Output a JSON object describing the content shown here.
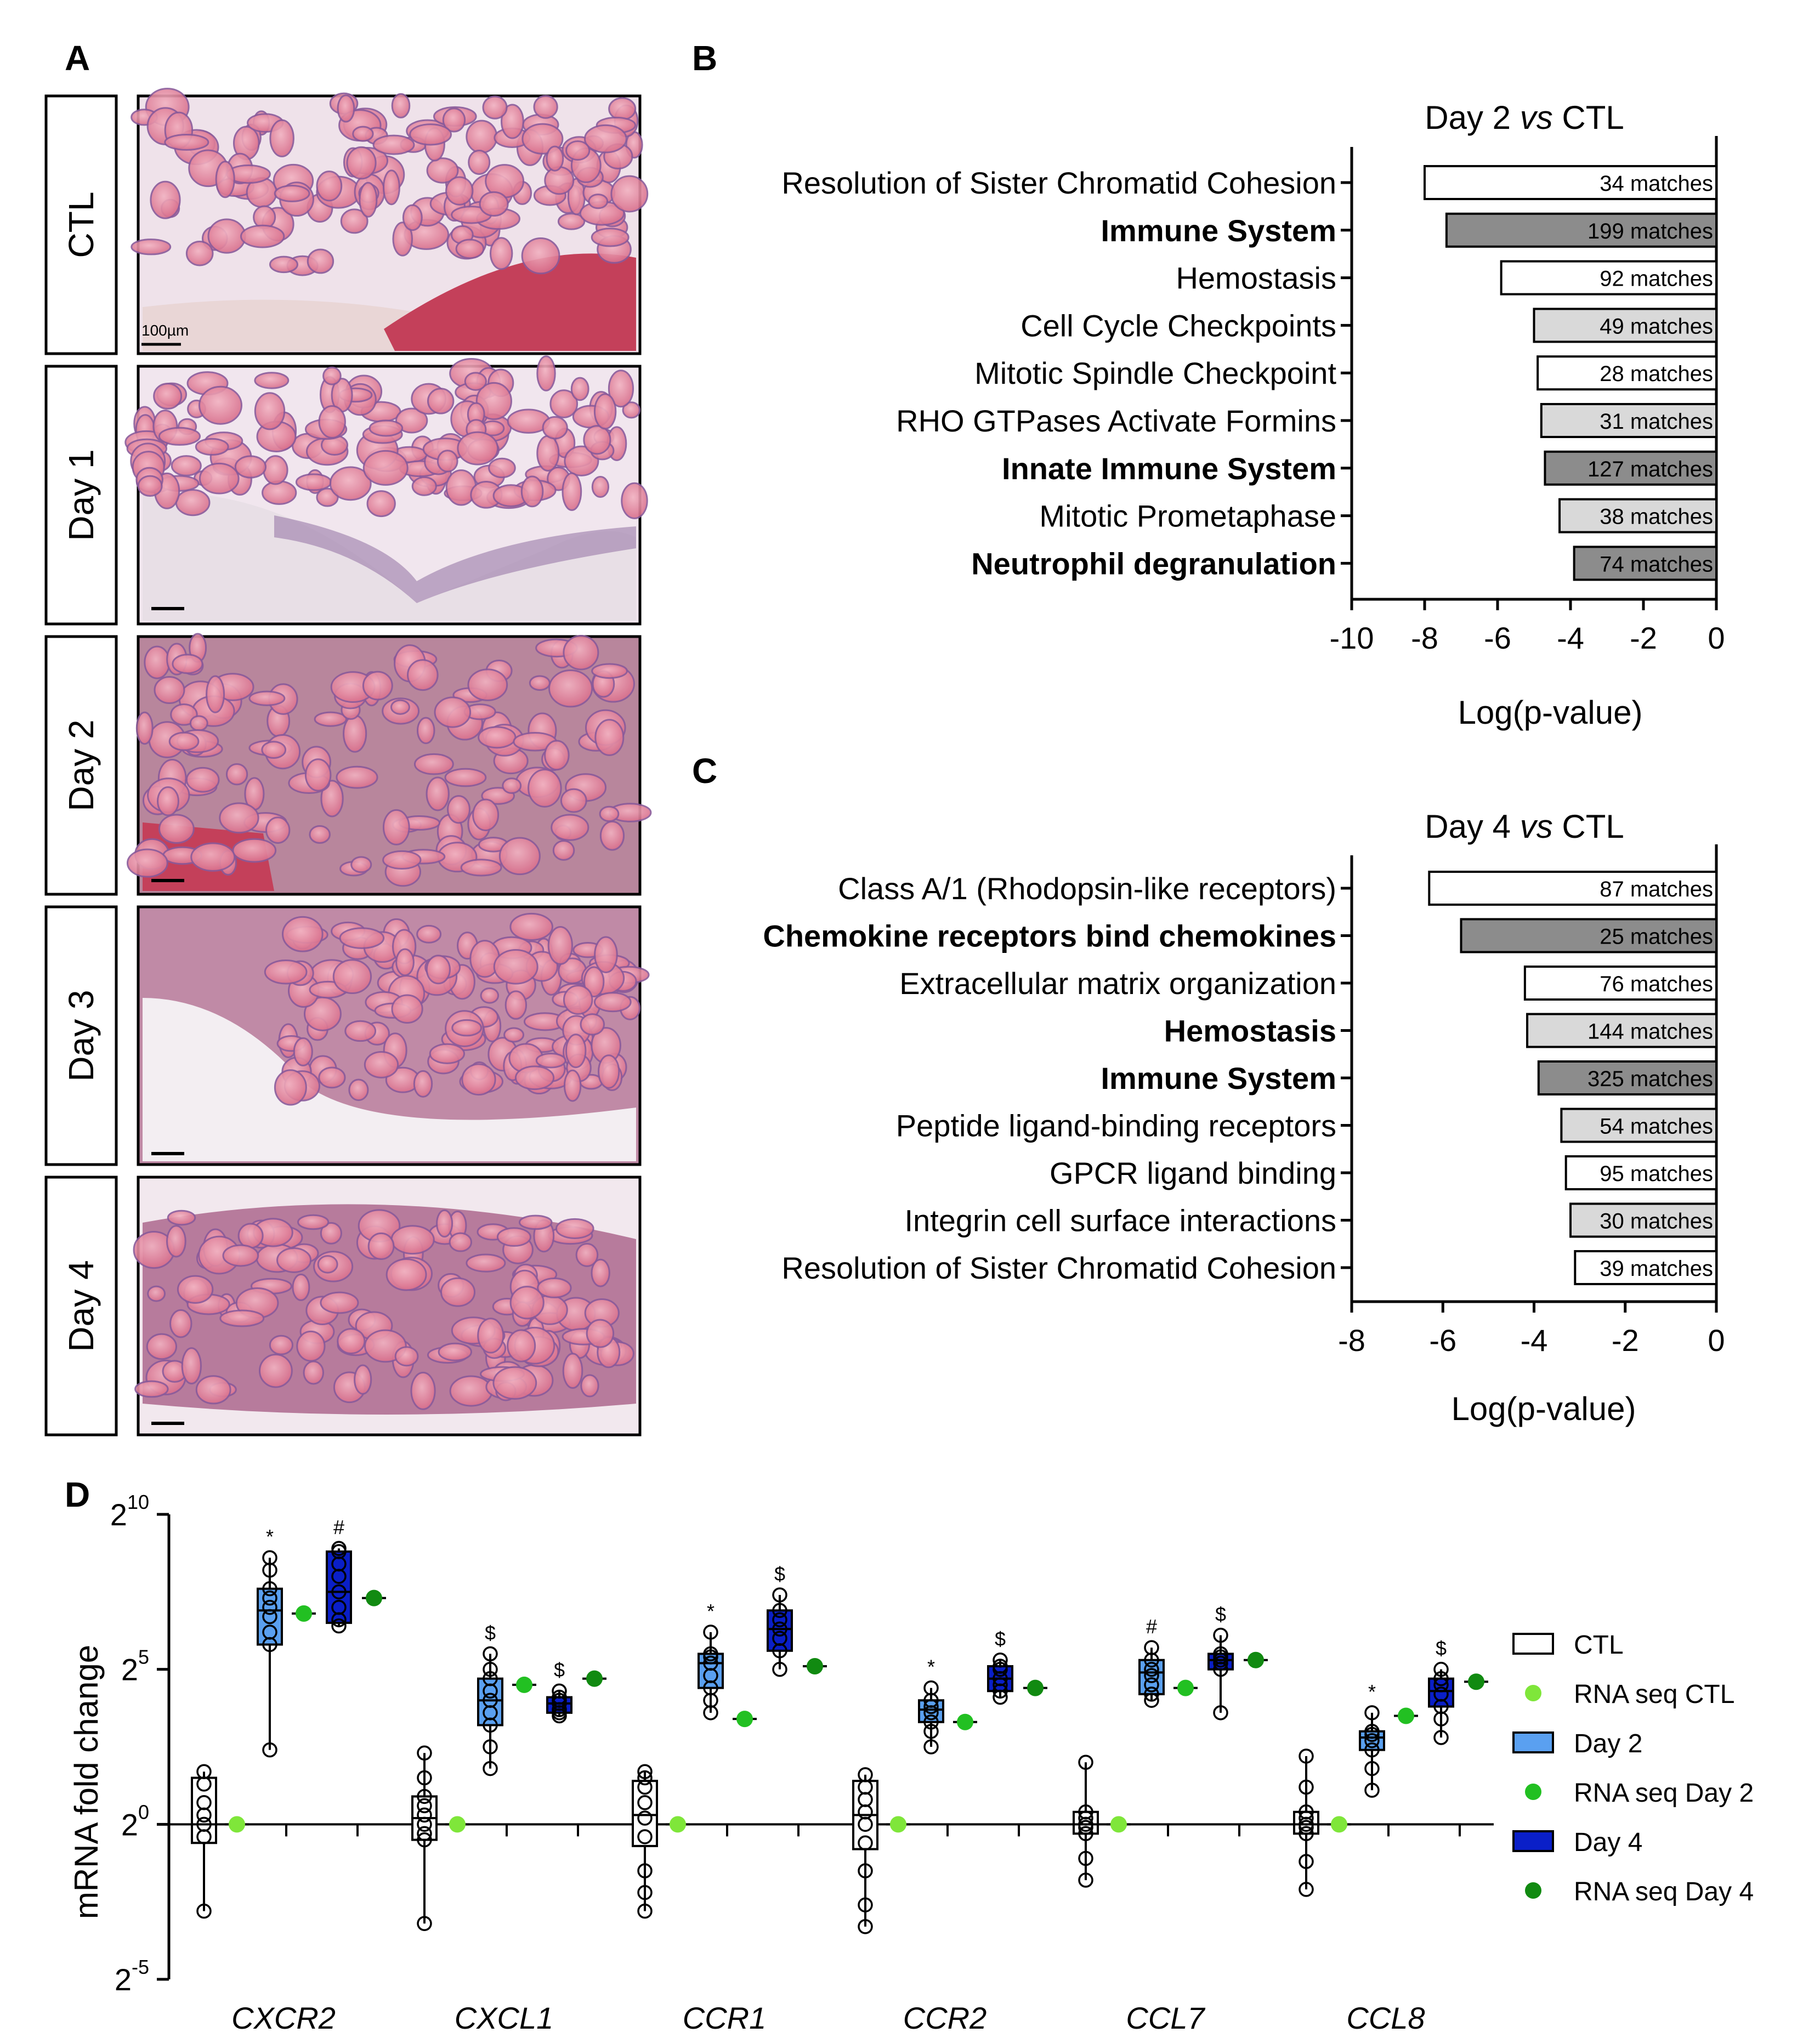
{
  "panel_letters": {
    "a": "A",
    "b": "B",
    "c": "C",
    "d": "D"
  },
  "panel_a": {
    "rows": [
      "CTL",
      "Day 1",
      "Day 2",
      "Day 3",
      "Day 4"
    ],
    "scale_label": "100µm"
  },
  "colors": {
    "white_bar": "#ffffff",
    "light_bar": "#d9d9d9",
    "dark_bar": "#8c8c8c",
    "ctl_box": "#ffffff",
    "day2_box": "#5aa0f0",
    "day4_box": "#0a1fc8",
    "rna_ctl": "#7fe63a",
    "rna_day2": "#22c022",
    "rna_day4": "#118a11",
    "tissue_pink": "#e4879e",
    "tissue_purple": "#8a5a9a"
  },
  "chart_data": [
    {
      "panel": "B",
      "type": "bar",
      "orientation": "horizontal",
      "title": "Day 2 vs CTL",
      "title_parts": [
        "Day 2 ",
        "vs",
        " CTL"
      ],
      "xlabel": "Log(p-value)",
      "xlim": [
        -10,
        0
      ],
      "xticks": [
        -10,
        -8,
        -6,
        -4,
        -2,
        0
      ],
      "categories": [
        "Resolution of Sister Chromatid Cohesion",
        "Immune System",
        "Hemostasis",
        "Cell Cycle Checkpoints",
        "Mitotic Spindle Checkpoint",
        "RHO GTPases Activate Formins",
        "Innate Immune System",
        "Mitotic Prometaphase",
        "Neutrophil degranulation"
      ],
      "bold": [
        false,
        true,
        false,
        false,
        false,
        false,
        true,
        false,
        true
      ],
      "values": [
        -8.0,
        -7.4,
        -5.9,
        -5.0,
        -4.9,
        -4.8,
        -4.7,
        -4.3,
        -3.9
      ],
      "fill": [
        "white",
        "dark",
        "white",
        "light",
        "white",
        "light",
        "dark",
        "light",
        "dark"
      ],
      "labels": [
        "34 matches",
        "199 matches",
        "92 matches",
        "49 matches",
        "28 matches",
        "31 matches",
        "127 matches",
        "38 matches",
        "74 matches"
      ]
    },
    {
      "panel": "C",
      "type": "bar",
      "orientation": "horizontal",
      "title": "Day 4 vs CTL",
      "title_parts": [
        "Day 4 ",
        "vs",
        " CTL"
      ],
      "xlabel": "Log(p-value)",
      "xlim": [
        -8,
        0
      ],
      "xticks": [
        -8,
        -6,
        -4,
        -2,
        0
      ],
      "categories": [
        "Class A/1 (Rhodopsin-like receptors)",
        "Chemokine receptors bind chemokines",
        "Extracellular matrix organization",
        "Hemostasis",
        "Immune System",
        "Peptide ligand-binding receptors",
        "GPCR ligand binding",
        "Integrin cell surface interactions",
        "Resolution of Sister Chromatid Cohesion"
      ],
      "bold": [
        false,
        true,
        false,
        true,
        true,
        false,
        false,
        false,
        false
      ],
      "values": [
        -6.3,
        -5.6,
        -4.2,
        -4.15,
        -3.9,
        -3.4,
        -3.3,
        -3.2,
        -3.1
      ],
      "fill": [
        "white",
        "dark",
        "white",
        "light",
        "dark",
        "light",
        "white",
        "light",
        "white"
      ],
      "labels": [
        "87 matches",
        "25 matches",
        "76 matches",
        "144 matches",
        "325 matches",
        "54 matches",
        "95 matches",
        "30 matches",
        "39 matches"
      ]
    },
    {
      "panel": "D",
      "type": "box",
      "ylabel": "mRNA fold change",
      "yscale": "log2",
      "ylim_exp": [
        -5,
        10
      ],
      "yticks_exp": [
        -5,
        0,
        5,
        10
      ],
      "ytick_base": "2",
      "categories": [
        "CXCR2",
        "CXCL1",
        "CCR1",
        "CCR2",
        "CCL7",
        "CCL8"
      ],
      "series": [
        {
          "name": "CTL",
          "kind": "box",
          "color_key": "ctl_box",
          "boxes": [
            {
              "min": -2.8,
              "q1": -0.6,
              "med": 0,
              "q3": 1.5,
              "max": 1.7,
              "points": [
                -2.8,
                -0.4,
                0,
                0.3,
                0.7,
                1.3,
                1.7
              ],
              "sig": ""
            },
            {
              "min": -3.2,
              "q1": -0.5,
              "med": 0.2,
              "q3": 0.9,
              "max": 2.3,
              "points": [
                -3.2,
                -0.5,
                -0.3,
                0,
                0.3,
                0.6,
                0.9,
                1.5,
                2.3
              ],
              "sig": ""
            },
            {
              "min": -2.8,
              "q1": -0.7,
              "med": 0.3,
              "q3": 1.4,
              "max": 1.7,
              "points": [
                -2.8,
                -2.2,
                -1.5,
                -0.4,
                0.2,
                0.7,
                1.2,
                1.5,
                1.7
              ],
              "sig": ""
            },
            {
              "min": -3.3,
              "q1": -0.8,
              "med": 0.3,
              "q3": 1.4,
              "max": 1.6,
              "points": [
                -3.3,
                -2.6,
                -1.5,
                -0.6,
                0,
                0.4,
                0.8,
                1.2,
                1.6
              ],
              "sig": ""
            },
            {
              "min": -1.8,
              "q1": -0.3,
              "med": 0,
              "q3": 0.4,
              "max": 2.0,
              "points": [
                -1.8,
                -1.1,
                -0.3,
                -0.1,
                0,
                0.2,
                0.4,
                2.0
              ],
              "sig": ""
            },
            {
              "min": -2.1,
              "q1": -0.3,
              "med": 0,
              "q3": 0.4,
              "max": 2.2,
              "points": [
                -2.1,
                -1.2,
                -0.3,
                -0.1,
                0,
                0.2,
                0.4,
                1.2,
                2.2
              ],
              "sig": ""
            }
          ]
        },
        {
          "name": "RNA seq CTL",
          "kind": "dot",
          "color_key": "rna_ctl",
          "values": [
            0,
            0,
            0,
            0,
            0,
            0
          ]
        },
        {
          "name": "Day 2",
          "kind": "box",
          "color_key": "day2_box",
          "boxes": [
            {
              "min": 2.4,
              "q1": 5.8,
              "med": 6.9,
              "q3": 7.6,
              "max": 8.6,
              "points": [
                2.4,
                5.8,
                6.2,
                6.7,
                7.0,
                7.3,
                7.6,
                8.2,
                8.6
              ],
              "sig": "*"
            },
            {
              "min": 1.8,
              "q1": 3.2,
              "med": 4.0,
              "q3": 4.7,
              "max": 5.5,
              "points": [
                1.8,
                2.5,
                3.2,
                3.6,
                4.0,
                4.3,
                4.7,
                5.0,
                5.5
              ],
              "sig": "$"
            },
            {
              "min": 3.6,
              "q1": 4.4,
              "med": 5.2,
              "q3": 5.5,
              "max": 6.2,
              "points": [
                3.6,
                4.0,
                4.4,
                4.8,
                5.2,
                5.4,
                5.5,
                6.2
              ],
              "sig": "*"
            },
            {
              "min": 2.5,
              "q1": 3.3,
              "med": 3.7,
              "q3": 4.0,
              "max": 4.4,
              "points": [
                2.5,
                3.0,
                3.3,
                3.6,
                3.8,
                4.0,
                4.4
              ],
              "sig": "*"
            },
            {
              "min": 4.0,
              "q1": 4.2,
              "med": 4.9,
              "q3": 5.3,
              "max": 5.7,
              "points": [
                4.0,
                4.2,
                4.5,
                4.8,
                5.0,
                5.3,
                5.7
              ],
              "sig": "#"
            },
            {
              "min": 1.1,
              "q1": 2.4,
              "med": 2.8,
              "q3": 3.0,
              "max": 3.6,
              "points": [
                1.1,
                1.8,
                2.4,
                2.7,
                2.9,
                3.0,
                3.6
              ],
              "sig": "*"
            }
          ]
        },
        {
          "name": "RNA seq Day 2",
          "kind": "dot",
          "color_key": "rna_day2",
          "values": [
            6.8,
            4.5,
            3.4,
            3.3,
            4.4,
            3.5
          ]
        },
        {
          "name": "Day 4",
          "kind": "box",
          "color_key": "day4_box",
          "boxes": [
            {
              "min": 6.4,
              "q1": 6.5,
              "med": 7.5,
              "q3": 8.8,
              "max": 8.9,
              "points": [
                6.4,
                6.6,
                7.0,
                7.5,
                8.0,
                8.4,
                8.8,
                8.9
              ],
              "sig": "#"
            },
            {
              "min": 3.5,
              "q1": 3.6,
              "med": 3.9,
              "q3": 4.1,
              "max": 4.3,
              "points": [
                3.5,
                3.6,
                3.7,
                3.9,
                4.0,
                4.1,
                4.3
              ],
              "sig": "$"
            },
            {
              "min": 5.0,
              "q1": 5.6,
              "med": 6.3,
              "q3": 6.9,
              "max": 7.4,
              "points": [
                5.0,
                5.6,
                6.0,
                6.3,
                6.6,
                6.9,
                7.4
              ],
              "sig": "$"
            },
            {
              "min": 4.1,
              "q1": 4.3,
              "med": 4.7,
              "q3": 5.1,
              "max": 5.3,
              "points": [
                4.1,
                4.3,
                4.5,
                4.7,
                5.0,
                5.1,
                5.3
              ],
              "sig": "$"
            },
            {
              "min": 3.6,
              "q1": 5.0,
              "med": 5.3,
              "q3": 5.5,
              "max": 6.1,
              "points": [
                3.6,
                5.0,
                5.2,
                5.3,
                5.4,
                5.5,
                6.1
              ],
              "sig": "$"
            },
            {
              "min": 2.8,
              "q1": 3.8,
              "med": 4.3,
              "q3": 4.7,
              "max": 5.0,
              "points": [
                2.8,
                3.4,
                3.8,
                4.2,
                4.5,
                4.7,
                5.0
              ],
              "sig": "$"
            }
          ]
        },
        {
          "name": "RNA seq Day 4",
          "kind": "dot",
          "color_key": "rna_day4",
          "values": [
            7.3,
            4.7,
            5.1,
            4.4,
            5.3,
            4.6
          ]
        }
      ],
      "legend": {
        "position": "right",
        "entries": [
          "CTL",
          "RNA seq CTL",
          "Day 2",
          "RNA seq Day 2",
          "Day 4",
          "RNA seq Day 4"
        ]
      }
    }
  ]
}
